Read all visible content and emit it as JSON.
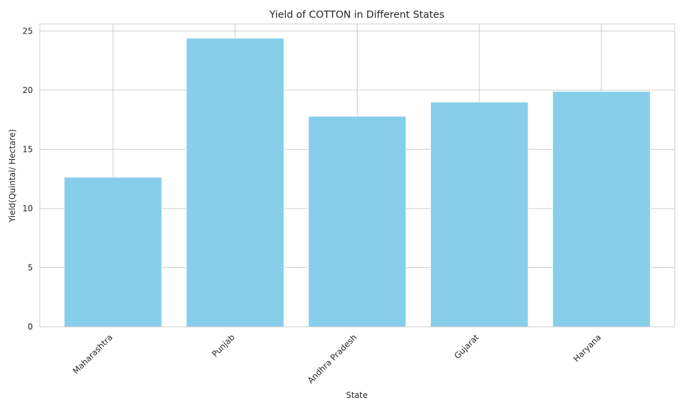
{
  "chart_data": {
    "type": "bar",
    "title": "Yield of COTTON in Different States",
    "xlabel": "State",
    "ylabel": "Yield(Quintal/ Hectare)",
    "categories": [
      "Maharashtra",
      "Punjab",
      "Andhra Pradesh",
      "Gujarat",
      "Haryana"
    ],
    "values": [
      12.65,
      24.4,
      17.8,
      19.0,
      19.9
    ],
    "ylim": [
      0,
      25.6
    ],
    "yticks": [
      0,
      5,
      10,
      15,
      20,
      25
    ],
    "grid": true,
    "bar_color": "#87CEEB",
    "grid_color": "#cccccc",
    "xtick_rotation": 45
  }
}
